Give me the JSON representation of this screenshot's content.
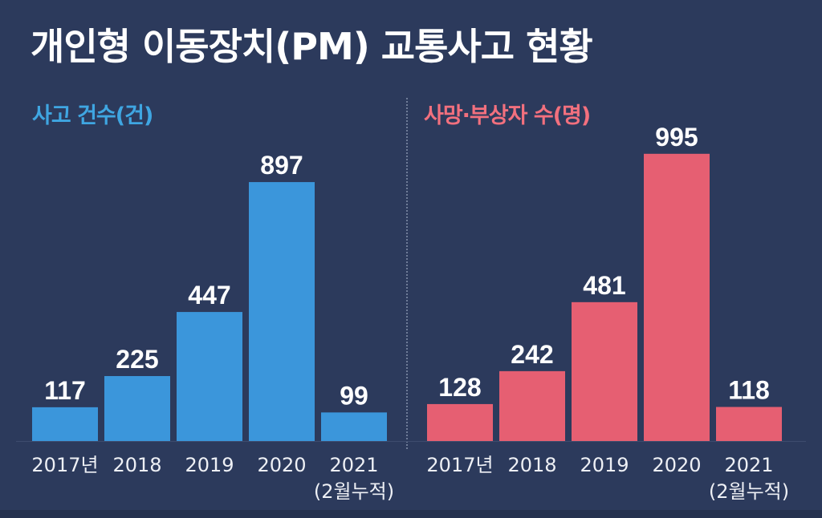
{
  "title": "개인형 이동장치(PM) 교통사고 현황",
  "colors": {
    "background": "#2c3a5c",
    "accidents": "#3b96db",
    "casualties": "#e65f72",
    "accidents_label": "#3fa6e2",
    "casualties_label": "#f2707e",
    "axis_text": "#eef0f5",
    "value_text": "#ffffff"
  },
  "chart_data": [
    {
      "type": "bar",
      "title": "사고 건수(건)",
      "categories": [
        "2017년",
        "2018",
        "2019",
        "2020",
        "2021\n(2월누적)"
      ],
      "values": [
        117,
        225,
        447,
        897,
        99
      ],
      "ylim": [
        0,
        1000
      ],
      "grid": false,
      "legend": "none"
    },
    {
      "type": "bar",
      "title": "사망·부상자 수(명)",
      "categories": [
        "2017년",
        "2018",
        "2019",
        "2020",
        "2021\n(2월누적)"
      ],
      "values": [
        128,
        242,
        481,
        995,
        118
      ],
      "ylim": [
        0,
        1000
      ],
      "grid": false,
      "legend": "none"
    }
  ]
}
